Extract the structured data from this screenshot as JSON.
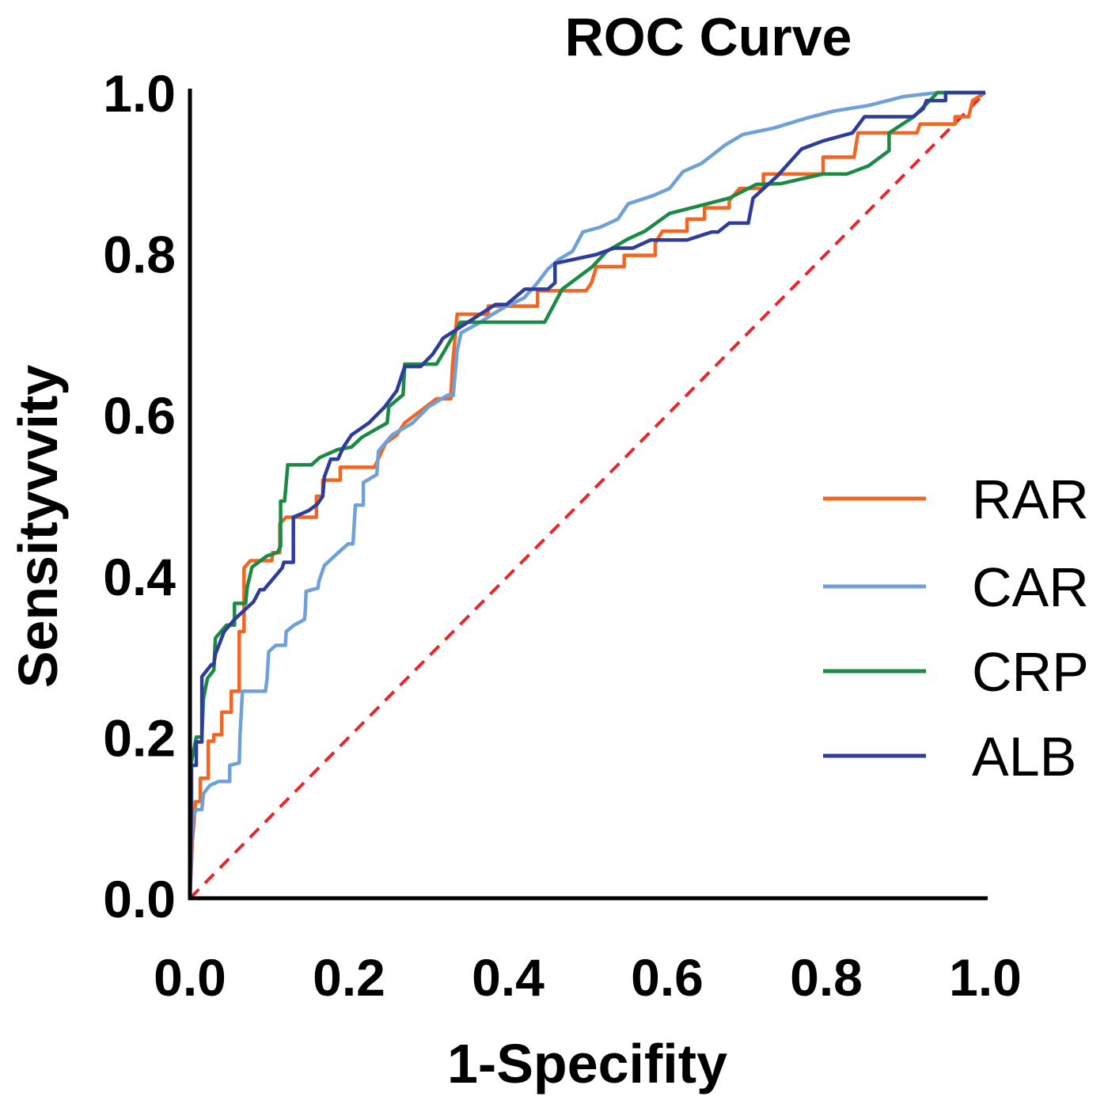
{
  "chart_data": {
    "type": "line",
    "title": "ROC Curve",
    "xlabel": "1-Specifity",
    "ylabel": "Sensityvvity",
    "xlim": [
      0,
      1
    ],
    "ylim": [
      0,
      1
    ],
    "xticks": [
      "0.0",
      "0.2",
      "0.4",
      "0.6",
      "0.8",
      "1.0"
    ],
    "yticks": [
      "0.0",
      "0.2",
      "0.4",
      "0.6",
      "0.8",
      "1.0"
    ],
    "grid": false,
    "legend_position": "right",
    "reference_line": {
      "points": [
        [
          0,
          0
        ],
        [
          1,
          1
        ]
      ],
      "color": "#e8262c",
      "style": "dashed"
    },
    "series": [
      {
        "name": "RAR",
        "color": "#f26522",
        "points": [
          [
            0,
            0
          ],
          [
            0.003,
            0.07
          ],
          [
            0.007,
            0.12
          ],
          [
            0.013,
            0.12
          ],
          [
            0.013,
            0.149
          ],
          [
            0.023,
            0.149
          ],
          [
            0.023,
            0.195
          ],
          [
            0.03,
            0.195
          ],
          [
            0.03,
            0.203
          ],
          [
            0.04,
            0.203
          ],
          [
            0.04,
            0.231
          ],
          [
            0.052,
            0.231
          ],
          [
            0.052,
            0.257
          ],
          [
            0.062,
            0.257
          ],
          [
            0.062,
            0.331
          ],
          [
            0.068,
            0.331
          ],
          [
            0.068,
            0.41
          ],
          [
            0.076,
            0.419
          ],
          [
            0.103,
            0.419
          ],
          [
            0.104,
            0.429
          ],
          [
            0.113,
            0.429
          ],
          [
            0.113,
            0.465
          ],
          [
            0.121,
            0.473
          ],
          [
            0.159,
            0.473
          ],
          [
            0.159,
            0.499
          ],
          [
            0.167,
            0.499
          ],
          [
            0.167,
            0.519
          ],
          [
            0.189,
            0.519
          ],
          [
            0.189,
            0.535
          ],
          [
            0.232,
            0.535
          ],
          [
            0.246,
            0.565
          ],
          [
            0.26,
            0.575
          ],
          [
            0.27,
            0.59
          ],
          [
            0.29,
            0.605
          ],
          [
            0.31,
            0.62
          ],
          [
            0.328,
            0.62
          ],
          [
            0.33,
            0.66
          ],
          [
            0.336,
            0.725
          ],
          [
            0.375,
            0.725
          ],
          [
            0.375,
            0.735
          ],
          [
            0.437,
            0.735
          ],
          [
            0.437,
            0.754
          ],
          [
            0.498,
            0.754
          ],
          [
            0.505,
            0.764
          ],
          [
            0.511,
            0.784
          ],
          [
            0.546,
            0.784
          ],
          [
            0.546,
            0.798
          ],
          [
            0.585,
            0.798
          ],
          [
            0.585,
            0.813
          ],
          [
            0.594,
            0.828
          ],
          [
            0.625,
            0.828
          ],
          [
            0.625,
            0.843
          ],
          [
            0.647,
            0.843
          ],
          [
            0.647,
            0.857
          ],
          [
            0.678,
            0.857
          ],
          [
            0.678,
            0.866
          ],
          [
            0.691,
            0.881
          ],
          [
            0.721,
            0.881
          ],
          [
            0.721,
            0.899
          ],
          [
            0.796,
            0.899
          ],
          [
            0.796,
            0.92
          ],
          [
            0.835,
            0.92
          ],
          [
            0.84,
            0.95
          ],
          [
            0.914,
            0.95
          ],
          [
            0.918,
            0.961
          ],
          [
            0.962,
            0.961
          ],
          [
            0.962,
            0.97
          ],
          [
            0.979,
            0.97
          ],
          [
            0.984,
            0.99
          ],
          [
            1,
            1
          ]
        ]
      },
      {
        "name": "CAR",
        "color": "#6fa0d8",
        "points": [
          [
            0,
            0
          ],
          [
            0.003,
            0.1
          ],
          [
            0.008,
            0.11
          ],
          [
            0.015,
            0.11
          ],
          [
            0.017,
            0.13
          ],
          [
            0.025,
            0.14
          ],
          [
            0.036,
            0.145
          ],
          [
            0.05,
            0.145
          ],
          [
            0.05,
            0.165
          ],
          [
            0.062,
            0.168
          ],
          [
            0.063,
            0.203
          ],
          [
            0.066,
            0.257
          ],
          [
            0.095,
            0.257
          ],
          [
            0.097,
            0.273
          ],
          [
            0.099,
            0.306
          ],
          [
            0.108,
            0.314
          ],
          [
            0.12,
            0.314
          ],
          [
            0.121,
            0.331
          ],
          [
            0.131,
            0.339
          ],
          [
            0.144,
            0.346
          ],
          [
            0.145,
            0.356
          ],
          [
            0.146,
            0.381
          ],
          [
            0.161,
            0.385
          ],
          [
            0.162,
            0.393
          ],
          [
            0.169,
            0.413
          ],
          [
            0.182,
            0.425
          ],
          [
            0.199,
            0.44
          ],
          [
            0.205,
            0.44
          ],
          [
            0.208,
            0.488
          ],
          [
            0.218,
            0.488
          ],
          [
            0.218,
            0.516
          ],
          [
            0.235,
            0.526
          ],
          [
            0.237,
            0.555
          ],
          [
            0.254,
            0.575
          ],
          [
            0.28,
            0.59
          ],
          [
            0.3,
            0.61
          ],
          [
            0.325,
            0.625
          ],
          [
            0.331,
            0.624
          ],
          [
            0.336,
            0.68
          ],
          [
            0.341,
            0.702
          ],
          [
            0.36,
            0.712
          ],
          [
            0.379,
            0.724
          ],
          [
            0.398,
            0.735
          ],
          [
            0.42,
            0.745
          ],
          [
            0.437,
            0.764
          ],
          [
            0.45,
            0.781
          ],
          [
            0.464,
            0.793
          ],
          [
            0.481,
            0.803
          ],
          [
            0.494,
            0.827
          ],
          [
            0.516,
            0.833
          ],
          [
            0.538,
            0.843
          ],
          [
            0.551,
            0.862
          ],
          [
            0.582,
            0.872
          ],
          [
            0.603,
            0.881
          ],
          [
            0.62,
            0.902
          ],
          [
            0.643,
            0.912
          ],
          [
            0.66,
            0.925
          ],
          [
            0.673,
            0.935
          ],
          [
            0.695,
            0.948
          ],
          [
            0.734,
            0.956
          ],
          [
            0.774,
            0.968
          ],
          [
            0.809,
            0.977
          ],
          [
            0.853,
            0.984
          ],
          [
            0.897,
            0.995
          ],
          [
            0.94,
            1
          ],
          [
            1,
            1
          ]
        ]
      },
      {
        "name": "CRP",
        "color": "#1a8a45",
        "points": [
          [
            0,
            0.16
          ],
          [
            0.008,
            0.2
          ],
          [
            0.015,
            0.2
          ],
          [
            0.017,
            0.248
          ],
          [
            0.022,
            0.273
          ],
          [
            0.03,
            0.283
          ],
          [
            0.032,
            0.323
          ],
          [
            0.046,
            0.339
          ],
          [
            0.056,
            0.339
          ],
          [
            0.056,
            0.366
          ],
          [
            0.07,
            0.366
          ],
          [
            0.072,
            0.386
          ],
          [
            0.078,
            0.411
          ],
          [
            0.097,
            0.425
          ],
          [
            0.11,
            0.429
          ],
          [
            0.114,
            0.437
          ],
          [
            0.114,
            0.493
          ],
          [
            0.119,
            0.493
          ],
          [
            0.123,
            0.538
          ],
          [
            0.153,
            0.538
          ],
          [
            0.163,
            0.547
          ],
          [
            0.186,
            0.557
          ],
          [
            0.203,
            0.56
          ],
          [
            0.216,
            0.572
          ],
          [
            0.23,
            0.58
          ],
          [
            0.248,
            0.59
          ],
          [
            0.25,
            0.61
          ],
          [
            0.268,
            0.625
          ],
          [
            0.27,
            0.663
          ],
          [
            0.31,
            0.663
          ],
          [
            0.318,
            0.676
          ],
          [
            0.329,
            0.695
          ],
          [
            0.34,
            0.715
          ],
          [
            0.446,
            0.715
          ],
          [
            0.468,
            0.756
          ],
          [
            0.506,
            0.784
          ],
          [
            0.524,
            0.803
          ],
          [
            0.55,
            0.818
          ],
          [
            0.572,
            0.828
          ],
          [
            0.603,
            0.85
          ],
          [
            0.678,
            0.869
          ],
          [
            0.712,
            0.886
          ],
          [
            0.743,
            0.887
          ],
          [
            0.796,
            0.899
          ],
          [
            0.826,
            0.899
          ],
          [
            0.853,
            0.909
          ],
          [
            0.879,
            0.928
          ],
          [
            0.879,
            0.95
          ],
          [
            0.91,
            0.97
          ],
          [
            0.94,
            1
          ],
          [
            1,
            1
          ]
        ]
      },
      {
        "name": "ALB",
        "color": "#2e3d9c",
        "points": [
          [
            0,
            0
          ],
          [
            0.002,
            0.12
          ],
          [
            0.002,
            0.165
          ],
          [
            0.008,
            0.165
          ],
          [
            0.008,
            0.194
          ],
          [
            0.015,
            0.194
          ],
          [
            0.015,
            0.275
          ],
          [
            0.027,
            0.29
          ],
          [
            0.03,
            0.29
          ],
          [
            0.032,
            0.303
          ],
          [
            0.043,
            0.331
          ],
          [
            0.056,
            0.346
          ],
          [
            0.07,
            0.359
          ],
          [
            0.08,
            0.368
          ],
          [
            0.088,
            0.383
          ],
          [
            0.093,
            0.383
          ],
          [
            0.116,
            0.41
          ],
          [
            0.118,
            0.417
          ],
          [
            0.13,
            0.417
          ],
          [
            0.13,
            0.473
          ],
          [
            0.149,
            0.481
          ],
          [
            0.16,
            0.489
          ],
          [
            0.167,
            0.499
          ],
          [
            0.169,
            0.523
          ],
          [
            0.177,
            0.545
          ],
          [
            0.186,
            0.545
          ],
          [
            0.193,
            0.56
          ],
          [
            0.203,
            0.575
          ],
          [
            0.225,
            0.59
          ],
          [
            0.245,
            0.61
          ],
          [
            0.26,
            0.63
          ],
          [
            0.27,
            0.66
          ],
          [
            0.29,
            0.66
          ],
          [
            0.305,
            0.675
          ],
          [
            0.315,
            0.69
          ],
          [
            0.318,
            0.695
          ],
          [
            0.384,
            0.737
          ],
          [
            0.398,
            0.737
          ],
          [
            0.421,
            0.756
          ],
          [
            0.45,
            0.756
          ],
          [
            0.459,
            0.764
          ],
          [
            0.459,
            0.788
          ],
          [
            0.511,
            0.799
          ],
          [
            0.533,
            0.807
          ],
          [
            0.557,
            0.807
          ],
          [
            0.579,
            0.817
          ],
          [
            0.625,
            0.817
          ],
          [
            0.656,
            0.827
          ],
          [
            0.664,
            0.827
          ],
          [
            0.678,
            0.838
          ],
          [
            0.702,
            0.838
          ],
          [
            0.708,
            0.869
          ],
          [
            0.738,
            0.896
          ],
          [
            0.769,
            0.93
          ],
          [
            0.796,
            0.94
          ],
          [
            0.833,
            0.95
          ],
          [
            0.848,
            0.97
          ],
          [
            0.909,
            0.97
          ],
          [
            0.922,
            0.98
          ],
          [
            0.926,
            0.99
          ],
          [
            0.95,
            0.99
          ],
          [
            0.95,
            1
          ],
          [
            1,
            1
          ]
        ]
      }
    ]
  }
}
